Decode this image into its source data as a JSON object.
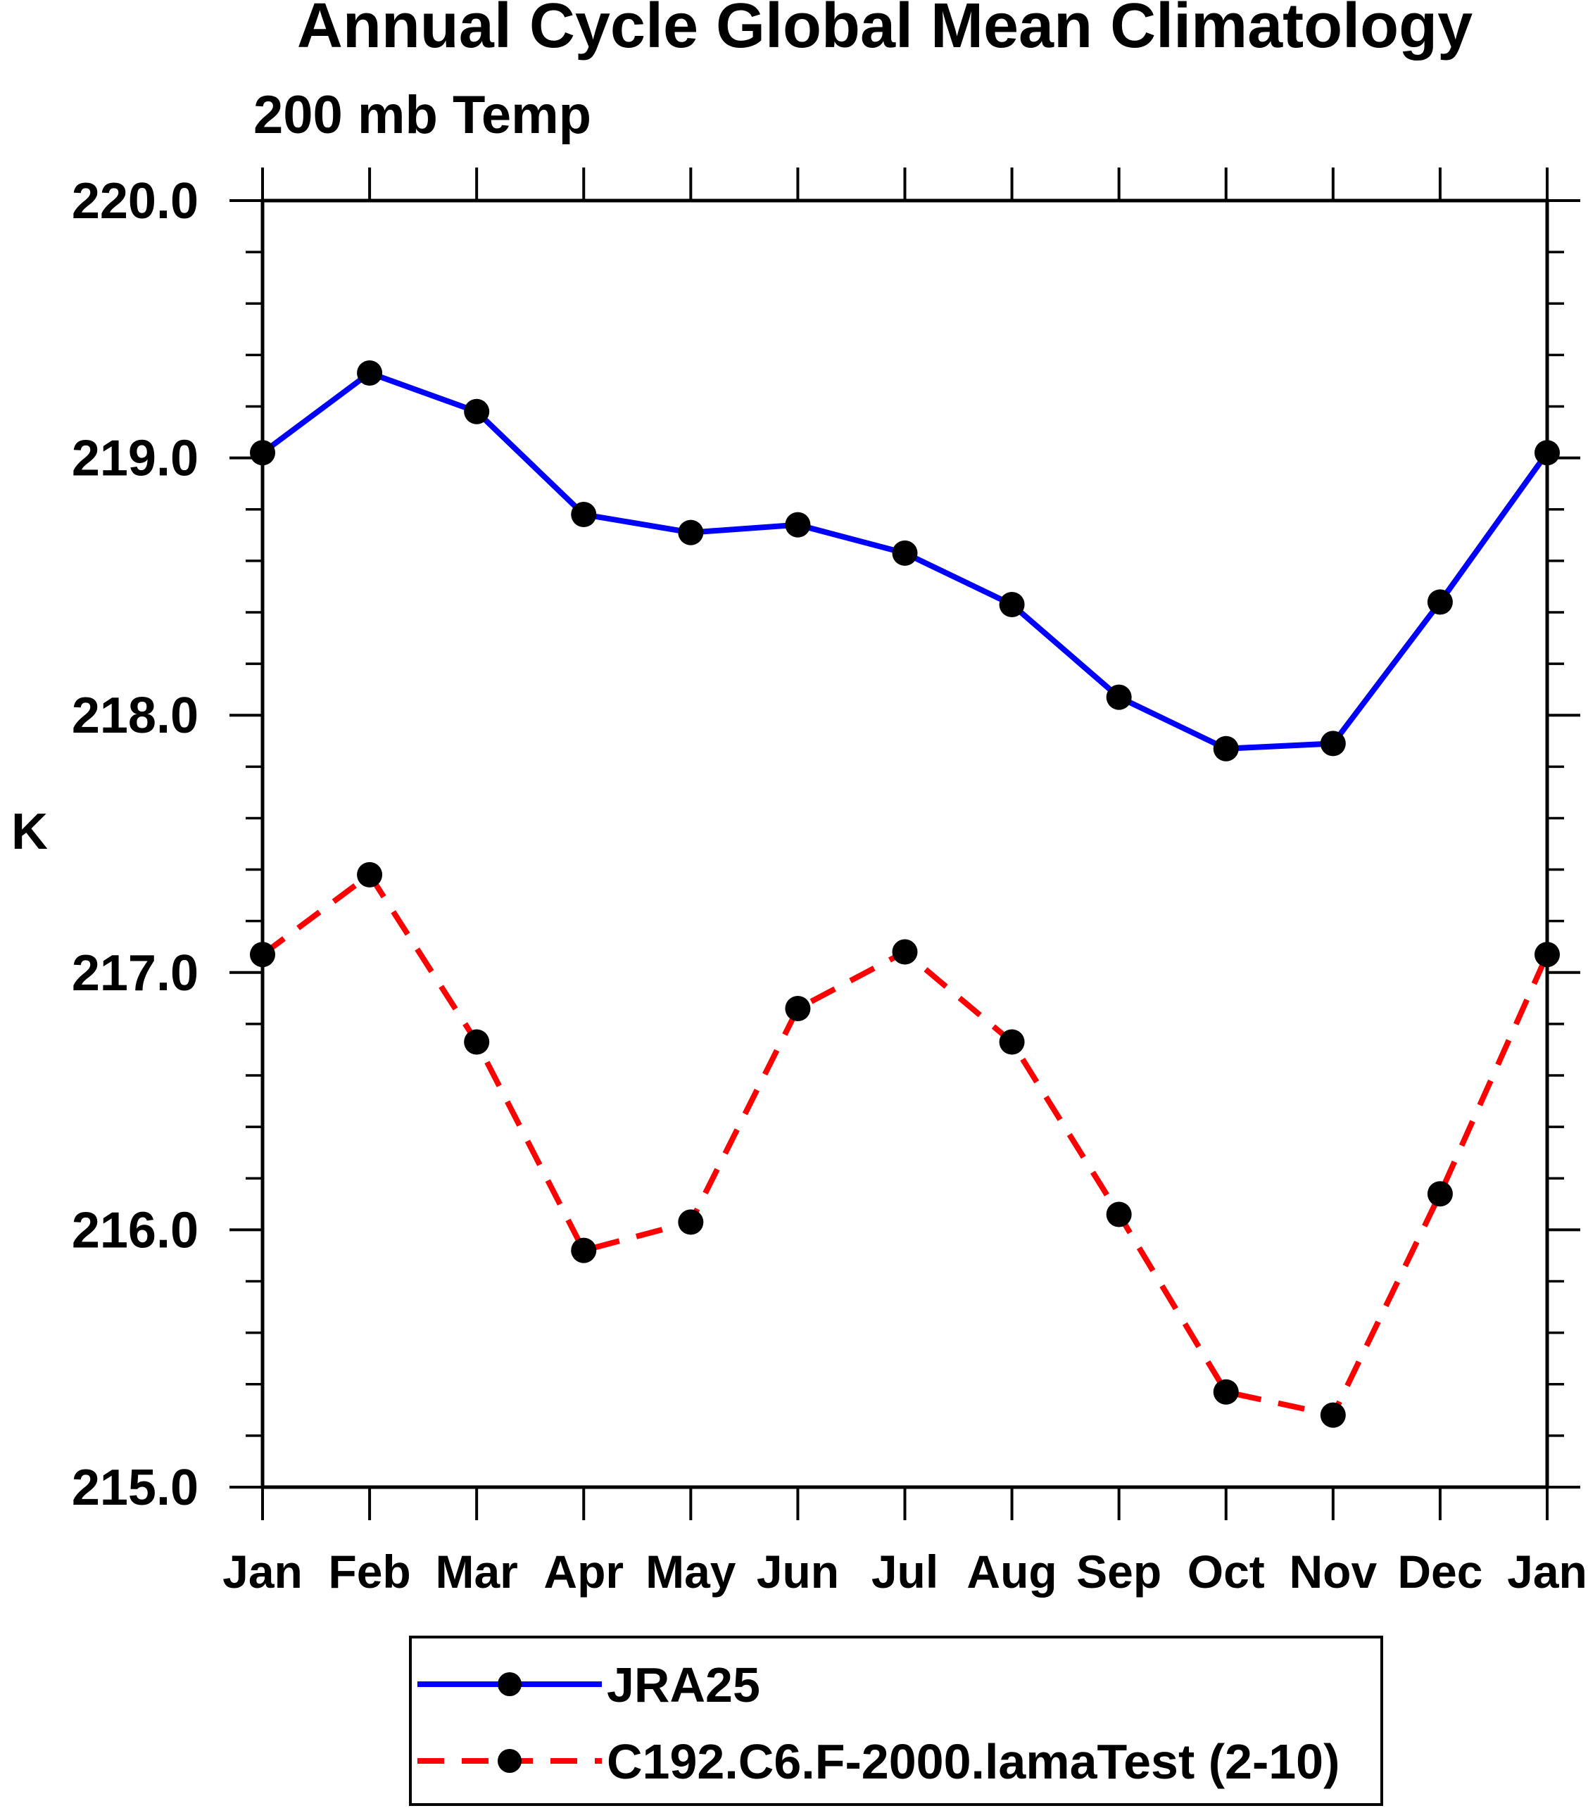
{
  "page": {
    "background": "#ffffff",
    "accent_black": "#000000"
  },
  "chart_data": {
    "type": "line",
    "title": "Annual Cycle Global Mean Climatology",
    "subtitle": "200 mb Temp",
    "ylabel": "K",
    "xlabel": "",
    "categories": [
      "Jan",
      "Feb",
      "Mar",
      "Apr",
      "May",
      "Jun",
      "Jul",
      "Aug",
      "Sep",
      "Oct",
      "Nov",
      "Dec",
      "Jan"
    ],
    "ylim": [
      215.0,
      220.0
    ],
    "ytick_major_step": 1.0,
    "ytick_minor_step": 0.2,
    "ytick_labels": [
      "215.0",
      "216.0",
      "217.0",
      "218.0",
      "219.0",
      "220.0"
    ],
    "grid": false,
    "legend_position": "bottom",
    "series": [
      {
        "name": "JRA25",
        "color": "#0000ff",
        "line_style": "solid",
        "marker": "filled-circle",
        "marker_color": "#000000",
        "values": [
          219.02,
          219.33,
          219.18,
          218.78,
          218.71,
          218.74,
          218.63,
          218.43,
          218.07,
          217.87,
          217.89,
          218.44,
          219.02
        ]
      },
      {
        "name": "C192.C6.F-2000.lamaTest (2-10)",
        "color": "#ff0000",
        "line_style": "dashed",
        "marker": "filled-circle",
        "marker_color": "#000000",
        "values": [
          217.07,
          217.38,
          216.73,
          215.92,
          216.03,
          216.86,
          217.08,
          216.73,
          216.06,
          215.37,
          215.28,
          216.14,
          217.07
        ]
      }
    ]
  }
}
